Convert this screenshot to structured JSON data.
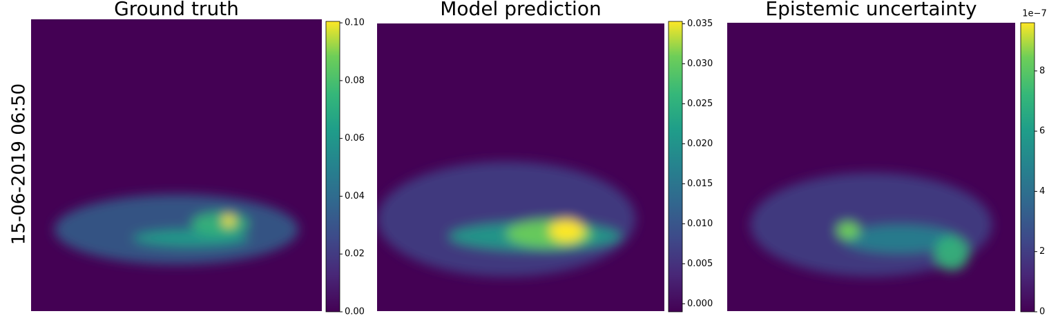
{
  "row_label": "15-06-2019 06:50",
  "chart_data": [
    {
      "type": "heatmap",
      "title": "Ground truth",
      "colormap": "viridis",
      "clim": [
        0,
        0.1005
      ],
      "cticks": [
        {
          "value": 0,
          "label": "0.00"
        },
        0.02,
        0.04,
        0.06,
        0.08,
        {
          "value": 0.1,
          "label": "0.10"
        }
      ]
    },
    {
      "type": "heatmap",
      "title": "Model prediction",
      "colormap": "viridis",
      "clim": [
        -0.001,
        0.0353
      ],
      "cticks": [
        {
          "value": 0,
          "label": "0.000"
        },
        0.005,
        {
          "value": 0.01,
          "label": "0.010"
        },
        0.015,
        {
          "value": 0.02,
          "label": "0.020"
        },
        0.025,
        {
          "value": 0.03,
          "label": "0.030"
        },
        0.035
      ]
    },
    {
      "type": "heatmap",
      "title": "Epistemic uncertainty",
      "colormap": "viridis",
      "clim": [
        0,
        9.6
      ],
      "scale_label": "1e−7",
      "cticks": [
        0,
        2,
        4,
        6,
        8
      ]
    }
  ]
}
